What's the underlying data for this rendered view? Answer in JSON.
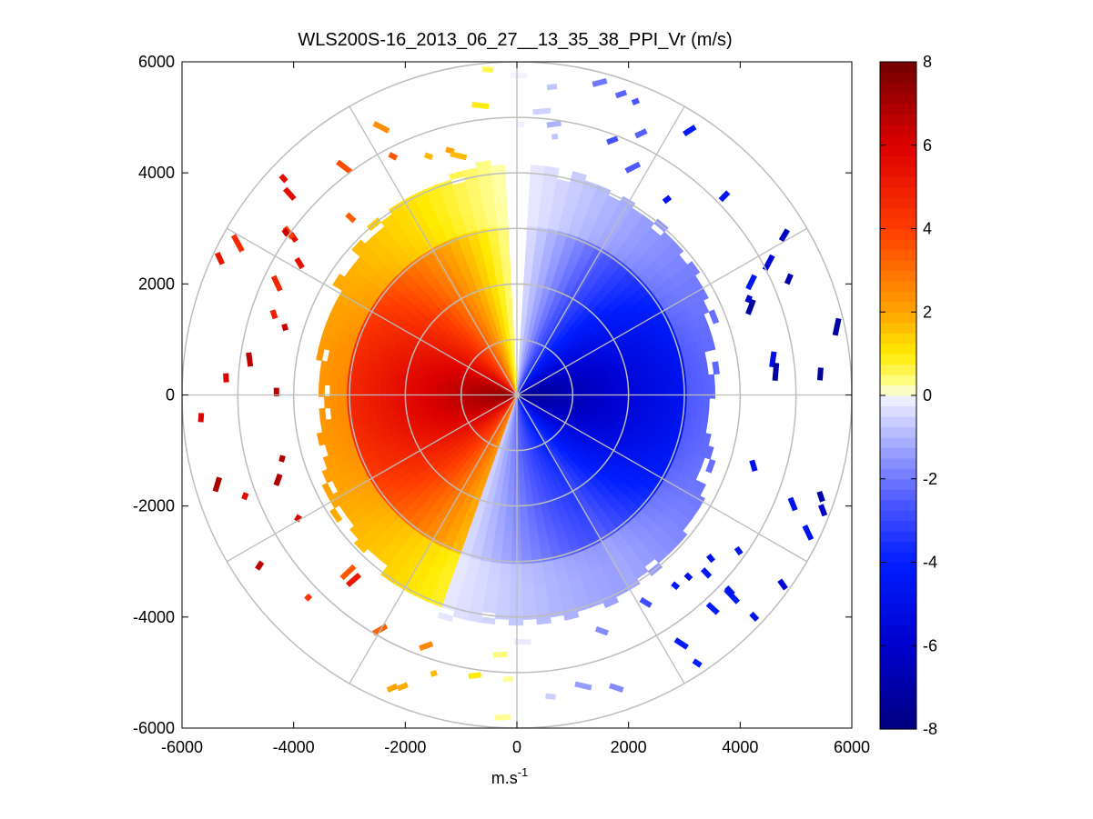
{
  "chart_data": {
    "type": "heatmap",
    "subtype": "polar-ppi",
    "title": "WLS200S-16_2013_06_27__13_35_38_PPI_Vr (m/s)",
    "xlabel_base": "m.s",
    "xlabel_exponent": "-1",
    "ylabel": "",
    "xlim": [
      -6000,
      6000
    ],
    "ylim": [
      -6000,
      6000
    ],
    "x_ticks": [
      -6000,
      -4000,
      -2000,
      0,
      2000,
      4000,
      6000
    ],
    "y_ticks": [
      -6000,
      -4000,
      -2000,
      0,
      2000,
      4000,
      6000
    ],
    "x_tick_labels": [
      "-6000",
      "-4000",
      "-2000",
      "0",
      "2000",
      "4000",
      "6000"
    ],
    "y_tick_labels": [
      "-6000",
      "-4000",
      "-2000",
      "0",
      "2000",
      "4000",
      "6000"
    ],
    "range_rings_m": [
      1000,
      2000,
      3000,
      4000,
      5000,
      6000
    ],
    "spoke_angles_deg": [
      0,
      30,
      60,
      90,
      120,
      150,
      180,
      210,
      240,
      270,
      300,
      330
    ],
    "grid": true,
    "colorbar": {
      "min": -8,
      "max": 8,
      "ticks": [
        8,
        6,
        4,
        2,
        0,
        -2,
        -4,
        -6,
        -8
      ],
      "tick_labels": [
        "8",
        "6",
        "4",
        "2",
        "0",
        "-2",
        "-4",
        "-6",
        "-8"
      ],
      "units": "m/s"
    },
    "field": {
      "description_values": "radial velocity Vr in m/s; positive (red) on west side, negative (blue) on east side",
      "max_velocity": 8,
      "min_velocity": -8,
      "approx_max_range_m": 4200,
      "sparse_outer_range_m": 6000
    }
  }
}
